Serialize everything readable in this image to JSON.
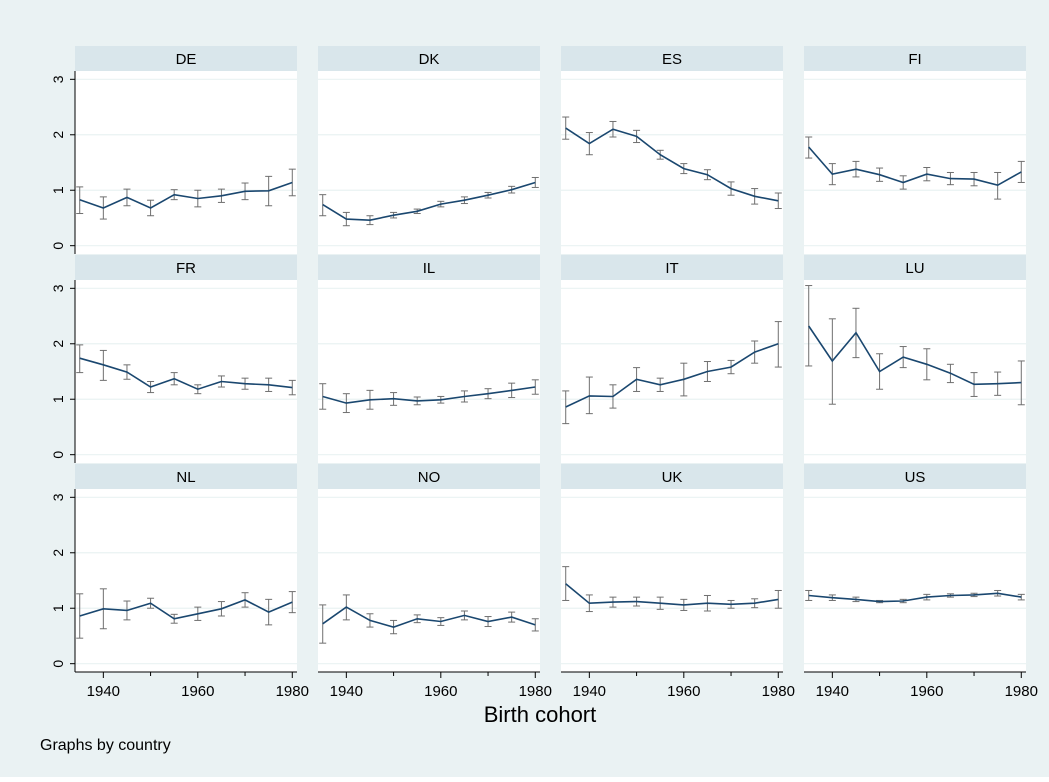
{
  "colors": {
    "outer_bg": "#eaf2f3",
    "panel_bg": "#ffffff",
    "strip_bg": "#d9e6eb",
    "grid": "#eaf2f3",
    "line": "#1a476f",
    "ci": "#6f6f6f",
    "text": "#000000"
  },
  "chart_data": {
    "type": "line",
    "layout": "small-multiples 3x4",
    "xlabel": "Birth cohort",
    "ylabel": "",
    "note": "Graphs by country",
    "xlim": [
      1934,
      1981
    ],
    "ylim": [
      -0.15,
      3.15
    ],
    "x_ticks": [
      1940,
      1960,
      1980
    ],
    "x_minor_ticks": [
      1950,
      1970
    ],
    "y_ticks": [
      0,
      1,
      2,
      3
    ],
    "grid": true,
    "error_bars": "capped confidence intervals",
    "x": [
      1935,
      1940,
      1945,
      1950,
      1955,
      1960,
      1965,
      1970,
      1975,
      1980
    ],
    "panels": [
      {
        "name": "DE",
        "values": [
          0.83,
          0.68,
          0.87,
          0.68,
          0.92,
          0.85,
          0.9,
          0.98,
          0.99,
          1.14
        ],
        "lower": [
          0.58,
          0.48,
          0.72,
          0.54,
          0.83,
          0.7,
          0.78,
          0.83,
          0.72,
          0.9
        ],
        "upper": [
          1.06,
          0.88,
          1.02,
          0.82,
          1.01,
          1.0,
          1.02,
          1.13,
          1.25,
          1.38
        ]
      },
      {
        "name": "DK",
        "values": [
          0.74,
          0.48,
          0.46,
          0.55,
          0.62,
          0.75,
          0.82,
          0.91,
          1.01,
          1.14
        ],
        "lower": [
          0.54,
          0.36,
          0.38,
          0.5,
          0.58,
          0.7,
          0.76,
          0.86,
          0.95,
          1.05
        ],
        "upper": [
          0.92,
          0.6,
          0.54,
          0.6,
          0.66,
          0.8,
          0.88,
          0.96,
          1.07,
          1.23
        ]
      },
      {
        "name": "ES",
        "values": [
          2.12,
          1.84,
          2.1,
          1.97,
          1.64,
          1.39,
          1.28,
          1.03,
          0.89,
          0.81
        ],
        "lower": [
          1.92,
          1.64,
          1.96,
          1.86,
          1.56,
          1.3,
          1.19,
          0.91,
          0.75,
          0.67
        ],
        "upper": [
          2.32,
          2.04,
          2.24,
          2.08,
          1.72,
          1.48,
          1.37,
          1.15,
          1.03,
          0.95
        ]
      },
      {
        "name": "FI",
        "values": [
          1.78,
          1.29,
          1.38,
          1.28,
          1.14,
          1.29,
          1.21,
          1.2,
          1.09,
          1.33
        ],
        "lower": [
          1.58,
          1.1,
          1.24,
          1.16,
          1.02,
          1.17,
          1.1,
          1.08,
          0.84,
          1.14
        ],
        "upper": [
          1.96,
          1.48,
          1.52,
          1.4,
          1.26,
          1.41,
          1.32,
          1.32,
          1.32,
          1.52
        ]
      },
      {
        "name": "FR",
        "values": [
          1.74,
          1.62,
          1.49,
          1.22,
          1.37,
          1.18,
          1.32,
          1.28,
          1.26,
          1.21
        ],
        "lower": [
          1.48,
          1.34,
          1.36,
          1.12,
          1.26,
          1.1,
          1.22,
          1.18,
          1.14,
          1.08
        ],
        "upper": [
          1.98,
          1.88,
          1.62,
          1.32,
          1.48,
          1.26,
          1.42,
          1.38,
          1.38,
          1.34
        ]
      },
      {
        "name": "IL",
        "values": [
          1.05,
          0.93,
          0.99,
          1.01,
          0.97,
          0.99,
          1.05,
          1.1,
          1.16,
          1.22
        ],
        "lower": [
          0.82,
          0.76,
          0.82,
          0.89,
          0.9,
          0.93,
          0.95,
          1.01,
          1.03,
          1.09
        ],
        "upper": [
          1.28,
          1.1,
          1.16,
          1.12,
          1.04,
          1.05,
          1.15,
          1.19,
          1.29,
          1.35
        ]
      },
      {
        "name": "IT",
        "values": [
          0.86,
          1.06,
          1.05,
          1.36,
          1.26,
          1.36,
          1.5,
          1.58,
          1.85,
          2.0
        ],
        "lower": [
          0.56,
          0.74,
          0.84,
          1.14,
          1.14,
          1.06,
          1.32,
          1.46,
          1.65,
          1.58
        ],
        "upper": [
          1.15,
          1.4,
          1.26,
          1.57,
          1.38,
          1.65,
          1.68,
          1.7,
          2.05,
          2.4
        ]
      },
      {
        "name": "LU",
        "values": [
          2.32,
          1.69,
          2.2,
          1.5,
          1.76,
          1.63,
          1.47,
          1.27,
          1.28,
          1.3
        ],
        "lower": [
          1.6,
          0.91,
          1.75,
          1.18,
          1.57,
          1.35,
          1.3,
          1.05,
          1.07,
          0.9
        ],
        "upper": [
          3.05,
          2.45,
          2.64,
          1.82,
          1.95,
          1.91,
          1.63,
          1.48,
          1.49,
          1.69
        ]
      },
      {
        "name": "NL",
        "values": [
          0.86,
          0.99,
          0.96,
          1.09,
          0.81,
          0.9,
          0.99,
          1.15,
          0.93,
          1.11
        ],
        "lower": [
          0.46,
          0.63,
          0.79,
          1.0,
          0.73,
          0.78,
          0.86,
          1.02,
          0.7,
          0.92
        ],
        "upper": [
          1.26,
          1.35,
          1.13,
          1.18,
          0.89,
          1.02,
          1.12,
          1.28,
          1.16,
          1.3
        ]
      },
      {
        "name": "NO",
        "values": [
          0.72,
          1.02,
          0.78,
          0.66,
          0.81,
          0.76,
          0.87,
          0.76,
          0.84,
          0.7
        ],
        "lower": [
          0.37,
          0.79,
          0.66,
          0.54,
          0.74,
          0.69,
          0.79,
          0.67,
          0.75,
          0.59
        ],
        "upper": [
          1.06,
          1.24,
          0.9,
          0.78,
          0.88,
          0.83,
          0.95,
          0.85,
          0.93,
          0.81
        ]
      },
      {
        "name": "UK",
        "values": [
          1.44,
          1.09,
          1.11,
          1.12,
          1.09,
          1.06,
          1.09,
          1.07,
          1.09,
          1.16
        ],
        "lower": [
          1.14,
          0.94,
          1.02,
          1.04,
          0.98,
          0.96,
          0.95,
          1.0,
          1.01,
          1.0
        ],
        "upper": [
          1.75,
          1.24,
          1.2,
          1.2,
          1.2,
          1.16,
          1.23,
          1.14,
          1.17,
          1.32
        ]
      },
      {
        "name": "US",
        "values": [
          1.23,
          1.19,
          1.16,
          1.12,
          1.13,
          1.2,
          1.23,
          1.24,
          1.27,
          1.2
        ],
        "lower": [
          1.14,
          1.14,
          1.12,
          1.1,
          1.1,
          1.15,
          1.2,
          1.21,
          1.22,
          1.15
        ],
        "upper": [
          1.32,
          1.24,
          1.2,
          1.14,
          1.16,
          1.25,
          1.26,
          1.27,
          1.32,
          1.25
        ]
      }
    ]
  }
}
